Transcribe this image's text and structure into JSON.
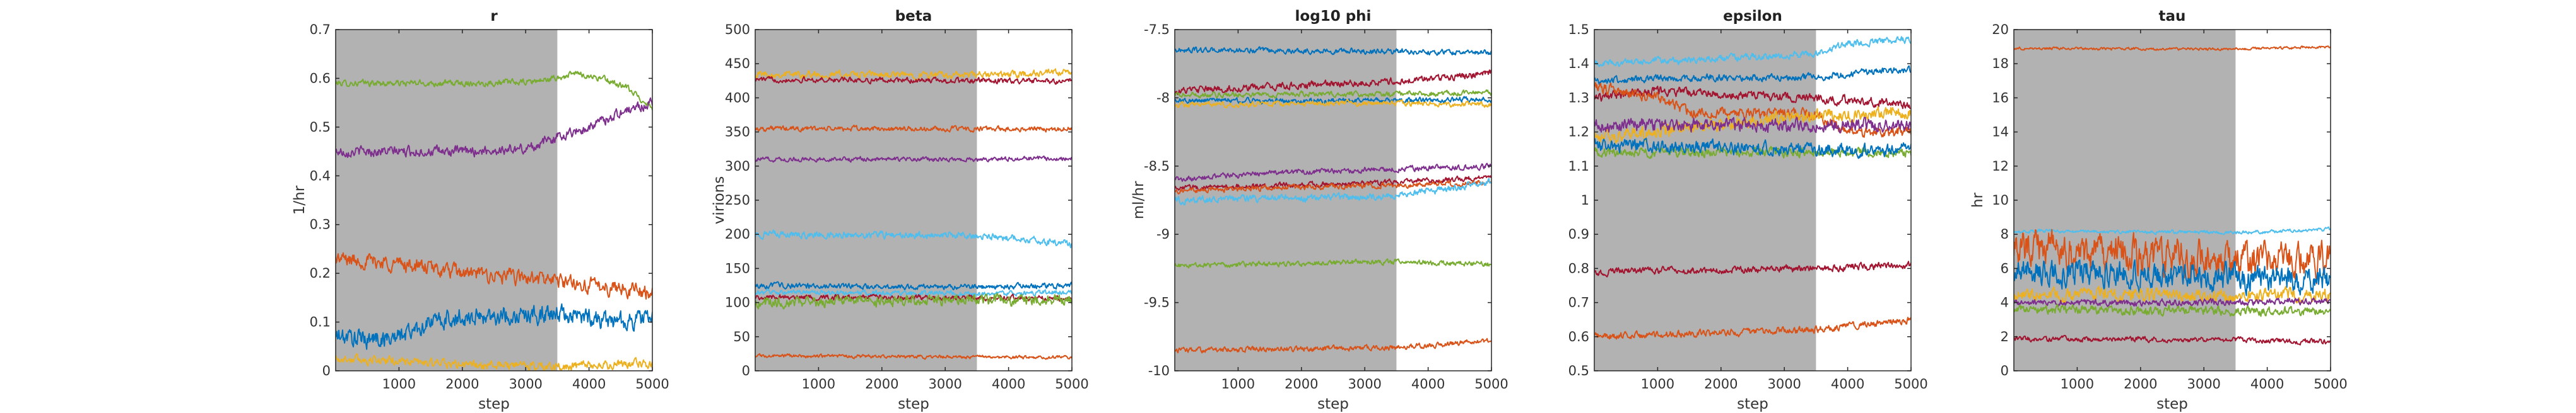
{
  "figure": {
    "colors": [
      "#0072BD",
      "#D95319",
      "#EDB120",
      "#7E2F8E",
      "#77AC30",
      "#4DBEEE",
      "#A2142F"
    ],
    "burnin_shade_color": "#b2b2b2"
  },
  "chart_data": [
    {
      "type": "line",
      "title": "r",
      "xlabel": "step",
      "ylabel": "1/hr",
      "xlim": [
        0,
        5000
      ],
      "ylim": [
        0,
        0.7
      ],
      "xticks": [
        1000,
        2000,
        3000,
        4000,
        5000
      ],
      "xtick_labels": [
        "1000",
        "2000",
        "3000",
        "4000",
        "5000"
      ],
      "yticks": [
        0,
        0.1,
        0.2,
        0.3,
        0.4,
        0.5,
        0.6,
        0.7
      ],
      "ytick_labels": [
        "0",
        "0.1",
        "0.2",
        "0.3",
        "0.4",
        "0.5",
        "0.6",
        "0.7"
      ],
      "burnin_end": 3500,
      "grid": false,
      "series": [
        {
          "color": "#77AC30",
          "x": [
            0,
            1000,
            2000,
            3000,
            3500,
            3800,
            4200,
            4600,
            5000
          ],
          "values": [
            0.59,
            0.59,
            0.59,
            0.592,
            0.6,
            0.61,
            0.6,
            0.58,
            0.54
          ],
          "noise": 0.005
        },
        {
          "color": "#7E2F8E",
          "x": [
            0,
            1000,
            2000,
            3000,
            3500,
            4000,
            4500,
            5000
          ],
          "values": [
            0.45,
            0.45,
            0.45,
            0.455,
            0.48,
            0.5,
            0.53,
            0.55
          ],
          "noise": 0.008
        },
        {
          "color": "#D95319",
          "x": [
            0,
            1000,
            2000,
            3000,
            3500,
            4000,
            4500,
            5000
          ],
          "values": [
            0.23,
            0.22,
            0.2,
            0.19,
            0.185,
            0.175,
            0.17,
            0.16
          ],
          "noise": 0.012
        },
        {
          "color": "#0072BD",
          "x": [
            0,
            500,
            1000,
            1500,
            2000,
            3000,
            3500,
            4000,
            4500,
            5000
          ],
          "values": [
            0.07,
            0.065,
            0.07,
            0.1,
            0.11,
            0.115,
            0.115,
            0.11,
            0.1,
            0.11
          ],
          "noise": 0.015
        },
        {
          "color": "#EDB120",
          "x": [
            0,
            1000,
            2000,
            3000,
            3500,
            4000,
            5000
          ],
          "values": [
            0.025,
            0.02,
            0.012,
            0.01,
            0.008,
            0.01,
            0.015
          ],
          "noise": 0.007
        }
      ]
    },
    {
      "type": "line",
      "title": "beta",
      "xlabel": "step",
      "ylabel": "virions",
      "xlim": [
        0,
        5000
      ],
      "ylim": [
        0,
        500
      ],
      "xticks": [
        1000,
        2000,
        3000,
        4000,
        5000
      ],
      "xtick_labels": [
        "1000",
        "2000",
        "3000",
        "4000",
        "5000"
      ],
      "yticks": [
        0,
        50,
        100,
        150,
        200,
        250,
        300,
        350,
        400,
        450,
        500
      ],
      "ytick_labels": [
        "0",
        "50",
        "100",
        "150",
        "200",
        "250",
        "300",
        "350",
        "400",
        "450",
        "500"
      ],
      "burnin_end": 3500,
      "grid": false,
      "series": [
        {
          "color": "#EDB120",
          "x": [
            0,
            3500,
            5000
          ],
          "values": [
            435,
            433,
            437
          ],
          "noise": 4
        },
        {
          "color": "#A2142F",
          "x": [
            0,
            3500,
            5000
          ],
          "values": [
            427,
            425,
            424
          ],
          "noise": 3
        },
        {
          "color": "#D95319",
          "x": [
            0,
            3500,
            5000
          ],
          "values": [
            355,
            354,
            355
          ],
          "noise": 3
        },
        {
          "color": "#7E2F8E",
          "x": [
            0,
            3500,
            5000
          ],
          "values": [
            310,
            310,
            312
          ],
          "noise": 2.5
        },
        {
          "color": "#4DBEEE",
          "x": [
            0,
            3500,
            4000,
            5000
          ],
          "values": [
            200,
            198,
            195,
            185
          ],
          "noise": 4
        },
        {
          "color": "#0072BD",
          "x": [
            0,
            3500,
            5000
          ],
          "values": [
            125,
            123,
            125
          ],
          "noise": 3
        },
        {
          "color": "#4DBEEE",
          "x": [
            0,
            3500,
            5000
          ],
          "values": [
            115,
            113,
            115
          ],
          "noise": 3
        },
        {
          "color": "#A2142F",
          "x": [
            0,
            3500,
            5000
          ],
          "values": [
            108,
            107,
            106
          ],
          "noise": 3
        },
        {
          "color": "#77AC30",
          "x": [
            0,
            3500,
            5000
          ],
          "values": [
            100,
            103,
            105
          ],
          "noise": 6
        },
        {
          "color": "#D95319",
          "x": [
            0,
            3500,
            5000
          ],
          "values": [
            22,
            20,
            20
          ],
          "noise": 2
        }
      ]
    },
    {
      "type": "line",
      "title": "log10 phi",
      "xlabel": "step",
      "ylabel": "ml/hr",
      "xlim": [
        0,
        5000
      ],
      "ylim": [
        -10,
        -7.5
      ],
      "xticks": [
        1000,
        2000,
        3000,
        4000,
        5000
      ],
      "xtick_labels": [
        "1000",
        "2000",
        "3000",
        "4000",
        "5000"
      ],
      "yticks": [
        -10,
        -9.5,
        -9,
        -8.5,
        -8,
        -7.5
      ],
      "ytick_labels": [
        "-10",
        "-9.5",
        "-9",
        "-8.5",
        "-8",
        "-7.5"
      ],
      "burnin_end": 3500,
      "grid": false,
      "series": [
        {
          "color": "#0072BD",
          "x": [
            0,
            3500,
            5000
          ],
          "values": [
            -7.65,
            -7.66,
            -7.67
          ],
          "noise": 0.015
        },
        {
          "color": "#A2142F",
          "x": [
            0,
            3500,
            5000
          ],
          "values": [
            -7.95,
            -7.88,
            -7.82
          ],
          "noise": 0.02
        },
        {
          "color": "#77AC30",
          "x": [
            0,
            3500,
            5000
          ],
          "values": [
            -7.98,
            -7.97,
            -7.96
          ],
          "noise": 0.015
        },
        {
          "color": "#0072BD",
          "x": [
            0,
            3500,
            5000
          ],
          "values": [
            -8.02,
            -8.02,
            -8.01
          ],
          "noise": 0.015
        },
        {
          "color": "#EDB120",
          "x": [
            0,
            3500,
            5000
          ],
          "values": [
            -8.05,
            -8.04,
            -8.05
          ],
          "noise": 0.015
        },
        {
          "color": "#7E2F8E",
          "x": [
            0,
            1500,
            3500,
            5000
          ],
          "values": [
            -8.6,
            -8.55,
            -8.52,
            -8.5
          ],
          "noise": 0.015
        },
        {
          "color": "#A2142F",
          "x": [
            0,
            3500,
            5000
          ],
          "values": [
            -8.66,
            -8.62,
            -8.58
          ],
          "noise": 0.015
        },
        {
          "color": "#D95319",
          "x": [
            0,
            3500,
            5000
          ],
          "values": [
            -8.68,
            -8.64,
            -8.62
          ],
          "noise": 0.015
        },
        {
          "color": "#4DBEEE",
          "x": [
            0,
            3500,
            5000
          ],
          "values": [
            -8.75,
            -8.72,
            -8.62
          ],
          "noise": 0.02
        },
        {
          "color": "#77AC30",
          "x": [
            0,
            3500,
            5000
          ],
          "values": [
            -9.23,
            -9.2,
            -9.22
          ],
          "noise": 0.015
        },
        {
          "color": "#D95319",
          "x": [
            0,
            3500,
            5000
          ],
          "values": [
            -9.85,
            -9.83,
            -9.78
          ],
          "noise": 0.015
        }
      ]
    },
    {
      "type": "line",
      "title": "epsilon",
      "xlabel": "step",
      "ylabel": "",
      "xlim": [
        0,
        5000
      ],
      "ylim": [
        0.5,
        1.5
      ],
      "xticks": [
        1000,
        2000,
        3000,
        4000,
        5000
      ],
      "xtick_labels": [
        "1000",
        "2000",
        "3000",
        "4000",
        "5000"
      ],
      "yticks": [
        0.5,
        0.6,
        0.7,
        0.8,
        0.9,
        1,
        1.1,
        1.2,
        1.3,
        1.4,
        1.5
      ],
      "ytick_labels": [
        "0.5",
        "0.6",
        "0.7",
        "0.8",
        "0.9",
        "1",
        "1.1",
        "1.2",
        "1.3",
        "1.4",
        "1.5"
      ],
      "burnin_end": 3500,
      "grid": false,
      "series": [
        {
          "color": "#4DBEEE",
          "x": [
            0,
            1500,
            3500,
            4000,
            5000
          ],
          "values": [
            1.4,
            1.41,
            1.43,
            1.46,
            1.47
          ],
          "noise": 0.008
        },
        {
          "color": "#0072BD",
          "x": [
            0,
            2000,
            3500,
            4500,
            5000
          ],
          "values": [
            1.35,
            1.36,
            1.36,
            1.38,
            1.38
          ],
          "noise": 0.008
        },
        {
          "color": "#A2142F",
          "x": [
            0,
            1000,
            3500,
            5000
          ],
          "values": [
            1.3,
            1.32,
            1.3,
            1.28
          ],
          "noise": 0.01
        },
        {
          "color": "#D95319",
          "x": [
            0,
            1000,
            1500,
            3500,
            4000,
            5000
          ],
          "values": [
            1.33,
            1.3,
            1.26,
            1.25,
            1.2,
            1.2
          ],
          "noise": 0.012
        },
        {
          "color": "#EDB120",
          "x": [
            0,
            2000,
            3500,
            4000,
            5000
          ],
          "values": [
            1.18,
            1.22,
            1.25,
            1.25,
            1.26
          ],
          "noise": 0.015
        },
        {
          "color": "#7E2F8E",
          "x": [
            0,
            3500,
            5000
          ],
          "values": [
            1.22,
            1.22,
            1.22
          ],
          "noise": 0.015
        },
        {
          "color": "#77AC30",
          "x": [
            0,
            3500,
            5000
          ],
          "values": [
            1.14,
            1.14,
            1.14
          ],
          "noise": 0.01
        },
        {
          "color": "#0072BD",
          "x": [
            0,
            3500,
            5000
          ],
          "values": [
            1.16,
            1.15,
            1.15
          ],
          "noise": 0.015
        },
        {
          "color": "#A2142F",
          "x": [
            0,
            3500,
            5000
          ],
          "values": [
            0.79,
            0.8,
            0.81
          ],
          "noise": 0.008
        },
        {
          "color": "#D95319",
          "x": [
            0,
            3500,
            5000
          ],
          "values": [
            0.6,
            0.62,
            0.65
          ],
          "noise": 0.008
        }
      ]
    },
    {
      "type": "line",
      "title": "tau",
      "xlabel": "step",
      "ylabel": "hr",
      "xlim": [
        0,
        5000
      ],
      "ylim": [
        0,
        20
      ],
      "xticks": [
        1000,
        2000,
        3000,
        4000,
        5000
      ],
      "xtick_labels": [
        "1000",
        "2000",
        "3000",
        "4000",
        "5000"
      ],
      "yticks": [
        0,
        2,
        4,
        6,
        8,
        10,
        12,
        14,
        16,
        18,
        20
      ],
      "ytick_labels": [
        "0",
        "2",
        "4",
        "6",
        "8",
        "10",
        "12",
        "14",
        "16",
        "18",
        "20"
      ],
      "burnin_end": 3500,
      "grid": false,
      "series": [
        {
          "color": "#D95319",
          "x": [
            0,
            3500,
            5000
          ],
          "values": [
            18.9,
            18.85,
            19.0
          ],
          "noise": 0.06
        },
        {
          "color": "#4DBEEE",
          "x": [
            0,
            3500,
            5000
          ],
          "values": [
            8.2,
            8.1,
            8.3
          ],
          "noise": 0.08
        },
        {
          "color": "#D95319",
          "x": [
            0,
            3500,
            5000
          ],
          "values": [
            7.2,
            6.5,
            6.5
          ],
          "noise": 0.8
        },
        {
          "color": "#0072BD",
          "x": [
            0,
            3500,
            5000
          ],
          "values": [
            5.8,
            5.5,
            5.3
          ],
          "noise": 0.6
        },
        {
          "color": "#EDB120",
          "x": [
            0,
            3500,
            5000
          ],
          "values": [
            4.5,
            4.4,
            4.5
          ],
          "noise": 0.3
        },
        {
          "color": "#7E2F8E",
          "x": [
            0,
            3500,
            5000
          ],
          "values": [
            4.0,
            4.0,
            4.1
          ],
          "noise": 0.15
        },
        {
          "color": "#77AC30",
          "x": [
            0,
            3500,
            5000
          ],
          "values": [
            3.6,
            3.5,
            3.5
          ],
          "noise": 0.2
        },
        {
          "color": "#A2142F",
          "x": [
            0,
            3500,
            5000
          ],
          "values": [
            1.9,
            1.8,
            1.7
          ],
          "noise": 0.12
        }
      ]
    }
  ]
}
